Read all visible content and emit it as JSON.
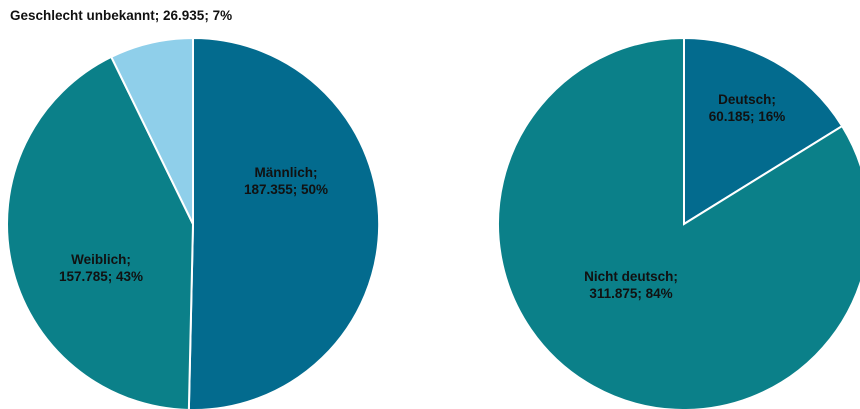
{
  "chart_data": [
    {
      "type": "pie",
      "slices": [
        {
          "label": "Männlich",
          "value": 187355,
          "value_text": "187.355",
          "percent": "50%",
          "color": "#036B8E",
          "label_mode": "inside"
        },
        {
          "label": "Weiblich",
          "value": 157785,
          "value_text": "157.785",
          "percent": "43%",
          "color": "#0B8089",
          "label_mode": "inside"
        },
        {
          "label": "Geschlecht unbekannt",
          "value": 26935,
          "value_text": "26.935",
          "percent": "7%",
          "color": "#8FCFEA",
          "label_mode": "outside"
        }
      ]
    },
    {
      "type": "pie",
      "slices": [
        {
          "label": "Deutsch",
          "value": 60185,
          "value_text": "60.185",
          "percent": "16%",
          "color": "#036B8E",
          "label_mode": "inside"
        },
        {
          "label": "Nicht deutsch",
          "value": 311875,
          "value_text": "311.875",
          "percent": "84%",
          "color": "#0B8089",
          "label_mode": "inside"
        }
      ]
    }
  ]
}
